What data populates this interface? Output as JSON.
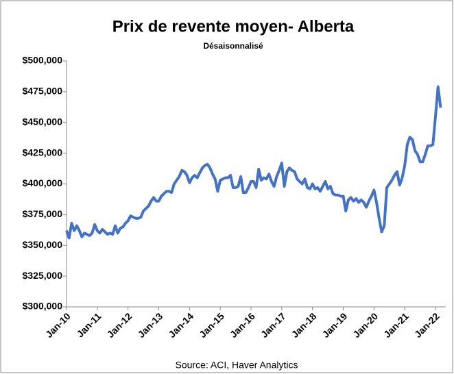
{
  "chart_data": {
    "type": "line",
    "title": "Prix de revente moyen- Alberta",
    "subtitle": "Désaisonnalisé",
    "source": "Source: ACI, Haver Analytics",
    "categories": [
      "Jan-10",
      null,
      null,
      null,
      null,
      null,
      null,
      null,
      null,
      null,
      null,
      null,
      "Jan-11",
      null,
      null,
      null,
      null,
      null,
      null,
      null,
      null,
      null,
      null,
      null,
      "Jan-12",
      null,
      null,
      null,
      null,
      null,
      null,
      null,
      null,
      null,
      null,
      null,
      "Jan-13",
      null,
      null,
      null,
      null,
      null,
      null,
      null,
      null,
      null,
      null,
      null,
      "Jan-14",
      null,
      null,
      null,
      null,
      null,
      null,
      null,
      null,
      null,
      null,
      null,
      "Jan-15",
      null,
      null,
      null,
      null,
      null,
      null,
      null,
      null,
      null,
      null,
      null,
      "Jan-16",
      null,
      null,
      null,
      null,
      null,
      null,
      null,
      null,
      null,
      null,
      null,
      "Jan-17",
      null,
      null,
      null,
      null,
      null,
      null,
      null,
      null,
      null,
      null,
      null,
      "Jan-18",
      null,
      null,
      null,
      null,
      null,
      null,
      null,
      null,
      null,
      null,
      null,
      "Jan-19",
      null,
      null,
      null,
      null,
      null,
      null,
      null,
      null,
      null,
      null,
      null,
      "Jan-20",
      null,
      null,
      null,
      null,
      null,
      null,
      null,
      null,
      null,
      null,
      null,
      "Jan-21",
      null,
      null,
      null,
      null,
      null,
      null,
      null,
      null,
      null,
      null,
      null,
      "Jan-22",
      null,
      null
    ],
    "series": [
      {
        "name": "Prix de revente moyen",
        "color": "#4472c4",
        "values": [
          362000,
          356000,
          368000,
          362000,
          366000,
          362000,
          357000,
          360000,
          359000,
          358000,
          360000,
          367000,
          362000,
          360000,
          363000,
          361000,
          359000,
          360000,
          359000,
          366000,
          360000,
          364000,
          365000,
          368000,
          370000,
          374000,
          373000,
          372000,
          372000,
          373000,
          378000,
          380000,
          382000,
          386000,
          389000,
          386000,
          386000,
          390000,
          392000,
          394000,
          394000,
          393000,
          400000,
          403000,
          406000,
          411000,
          410000,
          407000,
          401000,
          405000,
          407000,
          405000,
          409000,
          413000,
          415000,
          416000,
          413000,
          408000,
          404000,
          394000,
          403000,
          404000,
          405000,
          405000,
          407000,
          397000,
          397000,
          398000,
          406000,
          393000,
          393000,
          397000,
          402000,
          402000,
          397000,
          412000,
          403000,
          405000,
          404000,
          408000,
          402000,
          398000,
          406000,
          411000,
          417000,
          398000,
          410000,
          413000,
          411000,
          410000,
          404000,
          402000,
          400000,
          404000,
          397000,
          396000,
          400000,
          396000,
          397000,
          394000,
          398000,
          402000,
          396000,
          398000,
          392000,
          391000,
          391000,
          390000,
          390000,
          378000,
          387000,
          389000,
          386000,
          388000,
          385000,
          387000,
          385000,
          381000,
          386000,
          390000,
          395000,
          385000,
          372000,
          361000,
          366000,
          397000,
          400000,
          403000,
          407000,
          410000,
          399000,
          405000,
          415000,
          432000,
          438000,
          436000,
          427000,
          424000,
          418000,
          418000,
          424000,
          431000,
          431000,
          432000,
          455000,
          479000,
          462000
        ]
      }
    ],
    "ylim": [
      300000,
      500000
    ],
    "yticks": [
      {
        "value": 300000,
        "label": "$300,000"
      },
      {
        "value": 325000,
        "label": "$325,000"
      },
      {
        "value": 350000,
        "label": "$350,000"
      },
      {
        "value": 375000,
        "label": "$375,000"
      },
      {
        "value": 400000,
        "label": "$400,000"
      },
      {
        "value": 425000,
        "label": "$425,000"
      },
      {
        "value": 450000,
        "label": "$450,000"
      },
      {
        "value": 475000,
        "label": "$475,000"
      },
      {
        "value": 500000,
        "label": "$500,000"
      }
    ],
    "grid": false
  }
}
